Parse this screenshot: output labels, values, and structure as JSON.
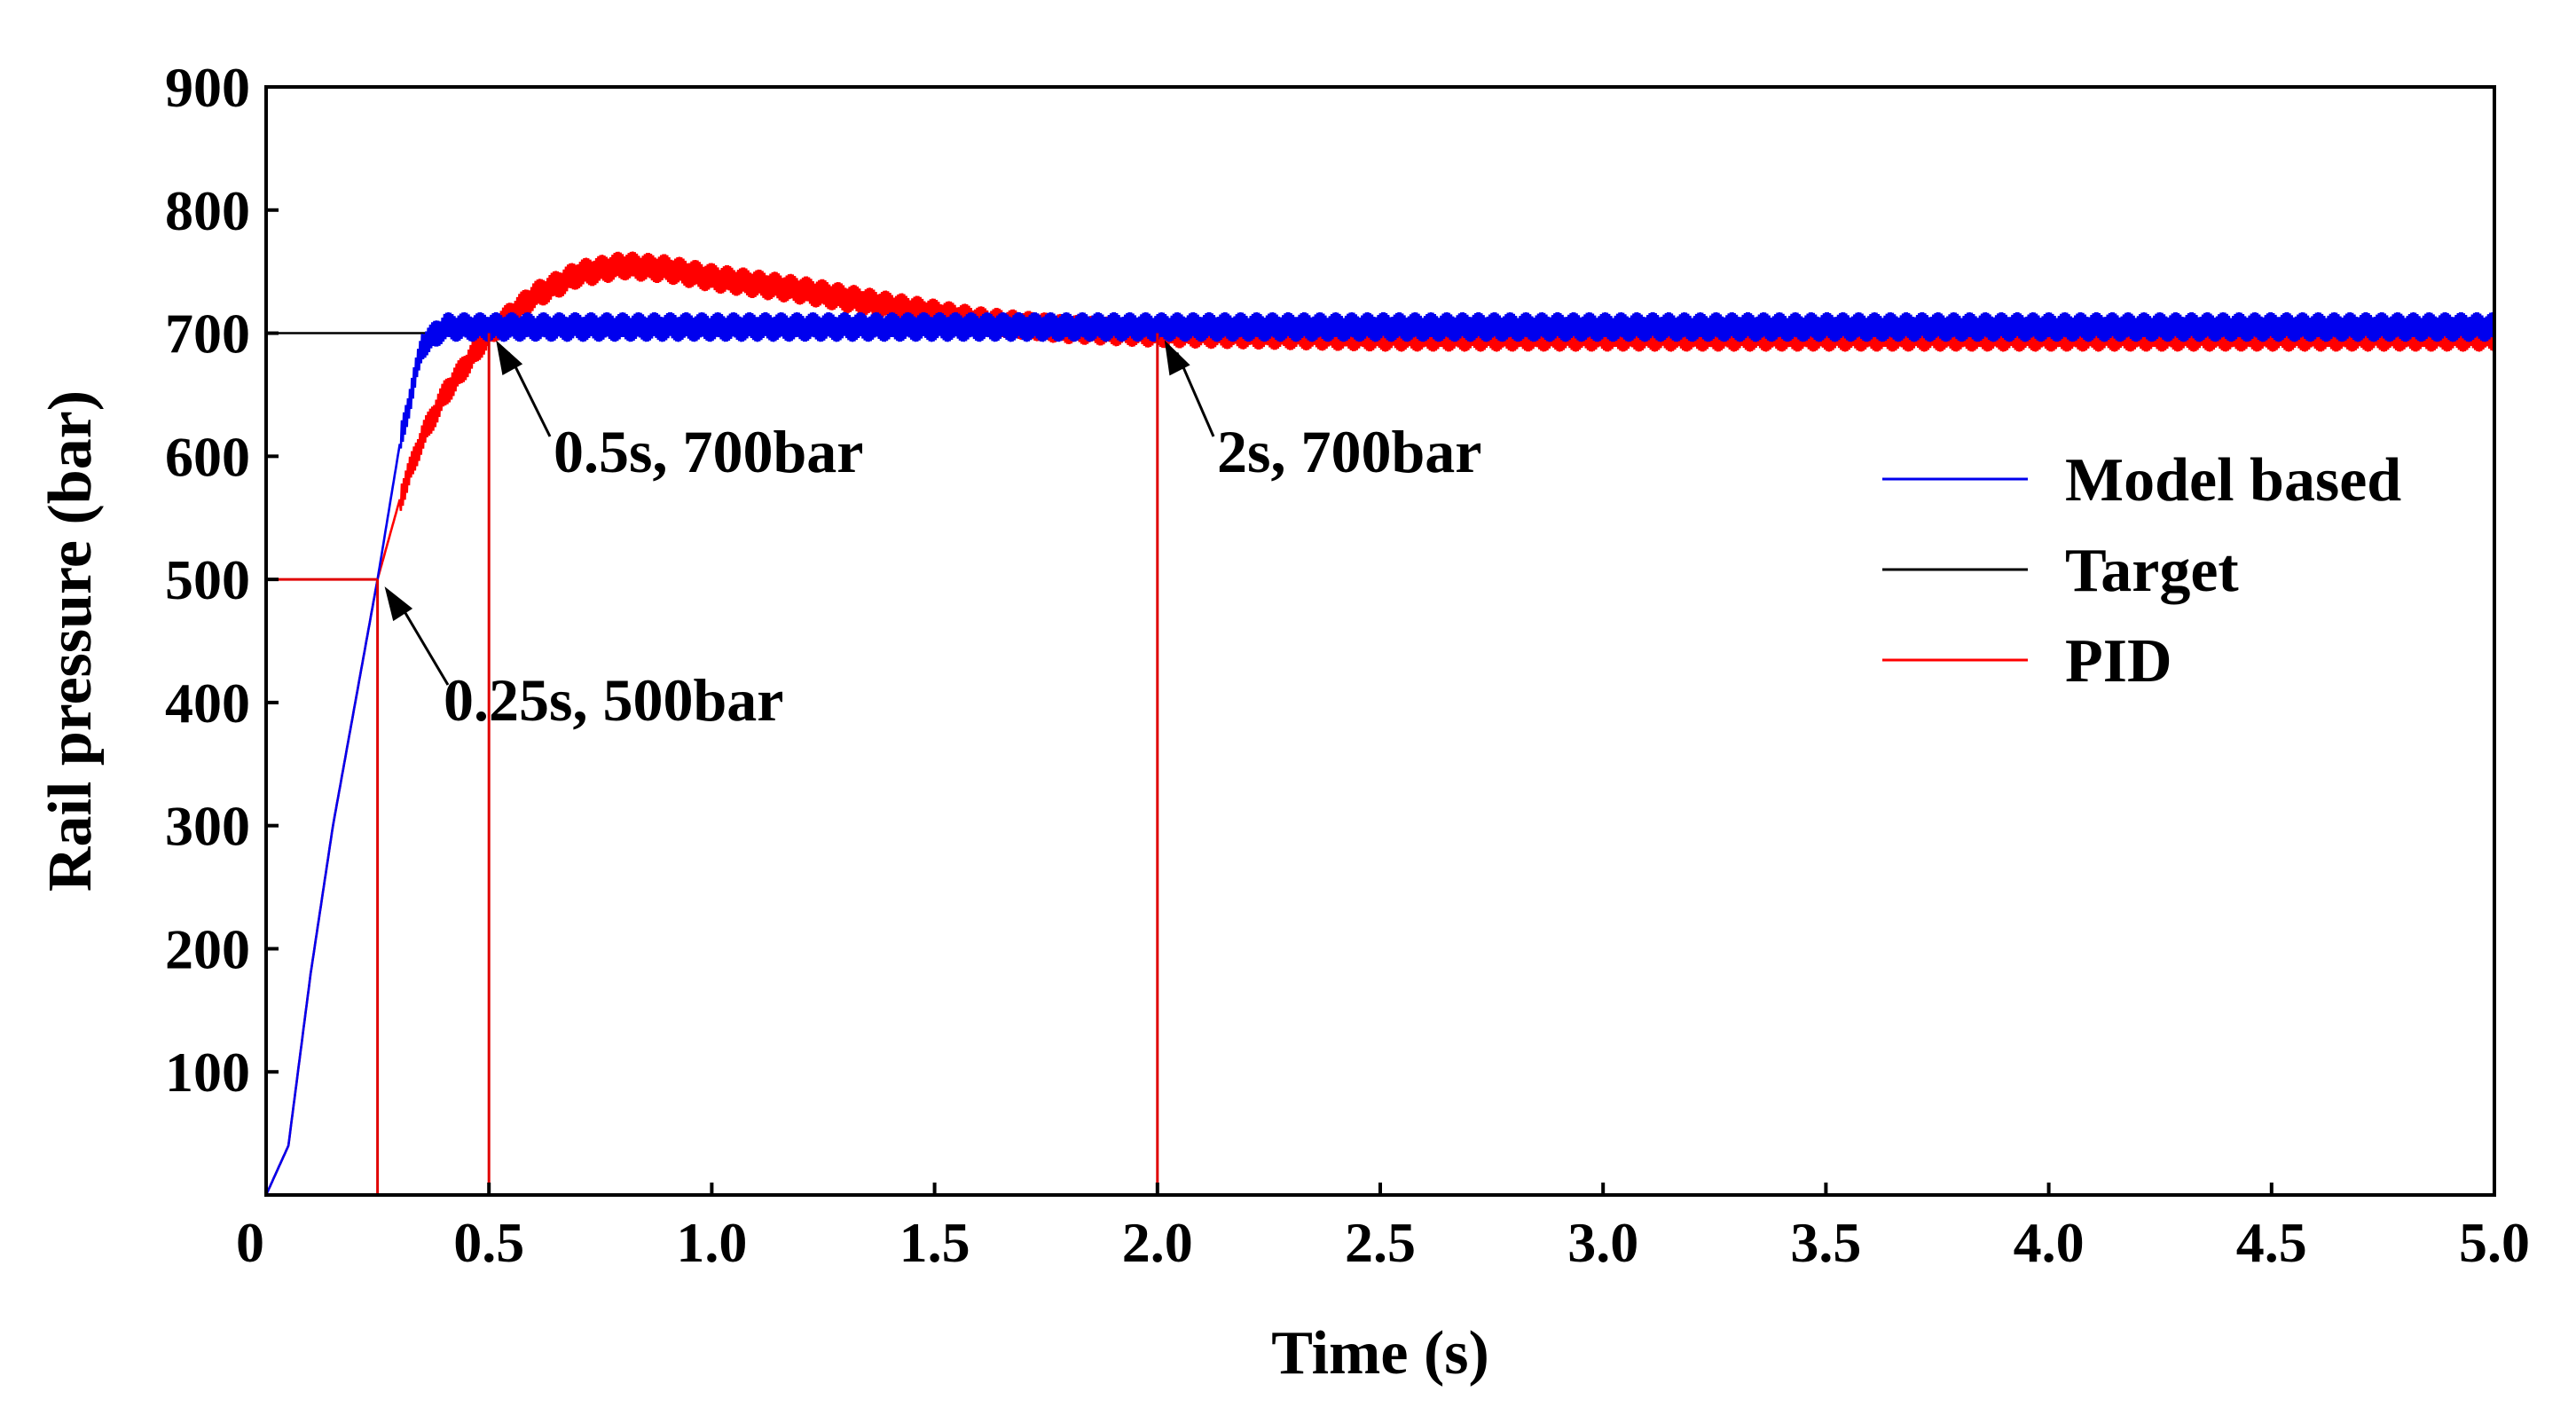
{
  "chart_data": {
    "type": "line",
    "title": "",
    "xlabel": "Time (s)",
    "ylabel": "Rail pressure (bar)",
    "xlim": [
      0,
      5.0
    ],
    "ylim": [
      0,
      900
    ],
    "x_ticks": [
      0,
      0.5,
      1.0,
      1.5,
      2.0,
      2.5,
      3.0,
      3.5,
      4.0,
      4.5,
      5.0
    ],
    "x_tick_labels": [
      "0",
      "0.5",
      "1.0",
      "1.5",
      "2.0",
      "2.5",
      "3.0",
      "3.5",
      "4.0",
      "4.5",
      "5.0"
    ],
    "y_ticks": [
      100,
      200,
      300,
      400,
      500,
      600,
      700,
      800,
      900
    ],
    "y_tick_labels": [
      "100",
      "200",
      "300",
      "400",
      "500",
      "600",
      "700",
      "800",
      "900"
    ],
    "grid": false,
    "legend_position": "right",
    "series": [
      {
        "name": "Model based",
        "color": "#0000ee",
        "x": [
          0,
          0.05,
          0.1,
          0.15,
          0.2,
          0.25,
          0.3,
          0.35,
          0.4,
          0.5,
          1.0,
          2.0,
          3.0,
          4.0,
          5.0
        ],
        "y": [
          0,
          40,
          180,
          300,
          400,
          500,
          610,
          690,
          705,
          705,
          705,
          705,
          705,
          705,
          705
        ],
        "noise_amplitude": 12
      },
      {
        "name": "Target",
        "color": "#000000",
        "x": [
          0,
          5.0
        ],
        "y": [
          700,
          700
        ]
      },
      {
        "name": "PID",
        "color": "#ff0000",
        "x": [
          0,
          0.05,
          0.1,
          0.15,
          0.2,
          0.25,
          0.3,
          0.35,
          0.4,
          0.5,
          0.6,
          0.7,
          0.8,
          0.9,
          1.0,
          1.2,
          1.4,
          1.6,
          1.8,
          2.0,
          2.5,
          3.0,
          4.0,
          5.0
        ],
        "y": [
          0,
          40,
          180,
          300,
          400,
          500,
          565,
          615,
          650,
          700,
          730,
          748,
          755,
          752,
          745,
          735,
          722,
          710,
          703,
          700,
          697,
          697,
          697,
          697
        ],
        "noise_amplitude": 12
      }
    ],
    "annotations": [
      {
        "text": "0.25s, 500bar",
        "x": 0.25,
        "y": 500
      },
      {
        "text": "0.5s, 700bar",
        "x": 0.5,
        "y": 700
      },
      {
        "text": "2s, 700bar",
        "x": 2.0,
        "y": 700
      }
    ],
    "guide_color": "#e00000",
    "target_color": "#000000"
  }
}
